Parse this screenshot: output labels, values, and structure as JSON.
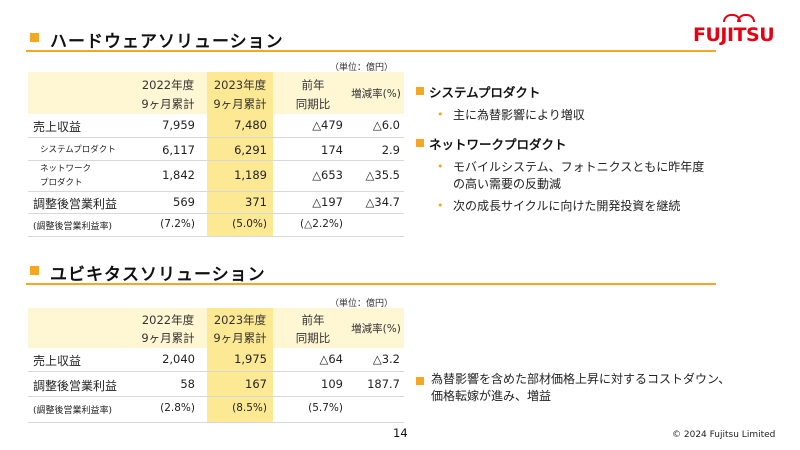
{
  "brand": {
    "logo_text": "FUJITSU",
    "accent_color": "#f5a623",
    "logo_color": "#e60012"
  },
  "hardware": {
    "title": "ハードウェアソリューション",
    "unit": "（単位：億円）",
    "headers": {
      "fy22_l1": "2022年度",
      "fy22_l2": "9ヶ月累計",
      "fy23_l1": "2023年度",
      "fy23_l2": "9ヶ月累計",
      "yoy_l1": "前年",
      "yoy_l2": "同期比",
      "rate": "増減率(%)"
    },
    "rows": [
      {
        "label": "売上収益",
        "fy22": "7,959",
        "fy23": "7,480",
        "yoy": "△479",
        "rate": "△6.0"
      },
      {
        "label": "システムプロダクト",
        "fy22": "6,117",
        "fy23": "6,291",
        "yoy": "174",
        "rate": "2.9"
      },
      {
        "label_l1": "ネットワーク",
        "label_l2": "プロダクト",
        "fy22": "1,842",
        "fy23": "1,189",
        "yoy": "△653",
        "rate": "△35.5"
      },
      {
        "label": "調整後営業利益",
        "fy22": "569",
        "fy23": "371",
        "yoy": "△197",
        "rate": "△34.7"
      },
      {
        "label": "(調整後営業利益率)",
        "fy22": "(7.2%)",
        "fy23": "(5.0%)",
        "yoy": "(△2.2%)",
        "rate": ""
      }
    ],
    "bullets": {
      "system_heading": "システムプロダクト",
      "system_items": [
        "主に為替影響により増収"
      ],
      "network_heading": "ネットワークプロダクト",
      "network_item1_l1": "モバイルシステム、フォトニクスともに昨年度",
      "network_item1_l2": "の高い需要の反動減",
      "network_item2": "次の成長サイクルに向けた開発投資を継続"
    }
  },
  "ubiquitous": {
    "title": "ユビキタスソリューション",
    "unit": "（単位：億円）",
    "headers": {
      "fy22_l1": "2022年度",
      "fy22_l2": "9ヶ月累計",
      "fy23_l1": "2023年度",
      "fy23_l2": "9ヶ月累計",
      "yoy_l1": "前年",
      "yoy_l2": "同期比",
      "rate": "増減率(%)"
    },
    "rows": [
      {
        "label": "売上収益",
        "fy22": "2,040",
        "fy23": "1,975",
        "yoy": "△64",
        "rate": "△3.2"
      },
      {
        "label": "調整後営業利益",
        "fy22": "58",
        "fy23": "167",
        "yoy": "109",
        "rate": "187.7"
      },
      {
        "label": "(調整後営業利益率)",
        "fy22": "(2.8%)",
        "fy23": "(8.5%)",
        "yoy": "(5.7%)",
        "rate": ""
      }
    ],
    "note_l1": "為替影響を含めた部材価格上昇に対するコストダウン、",
    "note_l2": "価格転嫁が進み、増益"
  },
  "footer": {
    "page_number": "14",
    "copyright": "© 2024 Fujitsu Limited"
  }
}
